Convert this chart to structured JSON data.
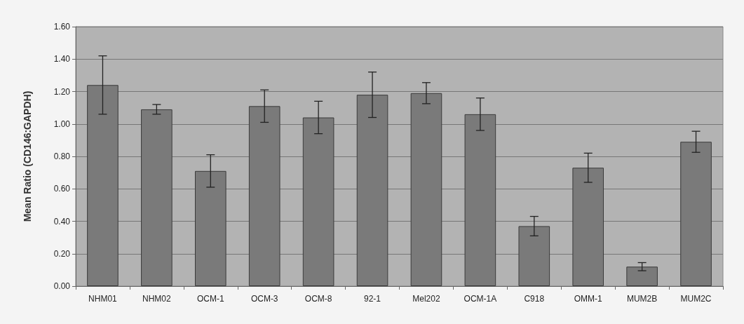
{
  "chart_data": {
    "type": "bar",
    "ylabel": "Mean Ratio (CD146:GAPDH)",
    "categories": [
      "NHM01",
      "NHM02",
      "OCM-1",
      "OCM-3",
      "OCM-8",
      "92-1",
      "Mel202",
      "OCM-1A",
      "C918",
      "OMM-1",
      "MUM2B",
      "MUM2C"
    ],
    "values": [
      1.24,
      1.09,
      0.71,
      1.11,
      1.04,
      1.18,
      1.19,
      1.06,
      0.37,
      0.73,
      0.12,
      0.89
    ],
    "errors": [
      0.18,
      0.03,
      0.1,
      0.1,
      0.1,
      0.14,
      0.065,
      0.1,
      0.06,
      0.09,
      0.025,
      0.065
    ],
    "color": "#7a7a7a",
    "ylim": [
      0,
      1.6
    ],
    "yticks": [
      {
        "value": 0,
        "label": "0.00"
      },
      {
        "value": 0.2,
        "label": "0.20"
      },
      {
        "value": 0.4,
        "label": "0.40"
      },
      {
        "value": 0.6,
        "label": "0.60"
      },
      {
        "value": 0.8,
        "label": "0.80"
      },
      {
        "value": 1,
        "label": "1.00"
      },
      {
        "value": 1.2,
        "label": "1.20"
      },
      {
        "value": 1.4,
        "label": "1.40"
      },
      {
        "value": 1.6,
        "label": "1.60"
      }
    ],
    "grid": "y"
  }
}
